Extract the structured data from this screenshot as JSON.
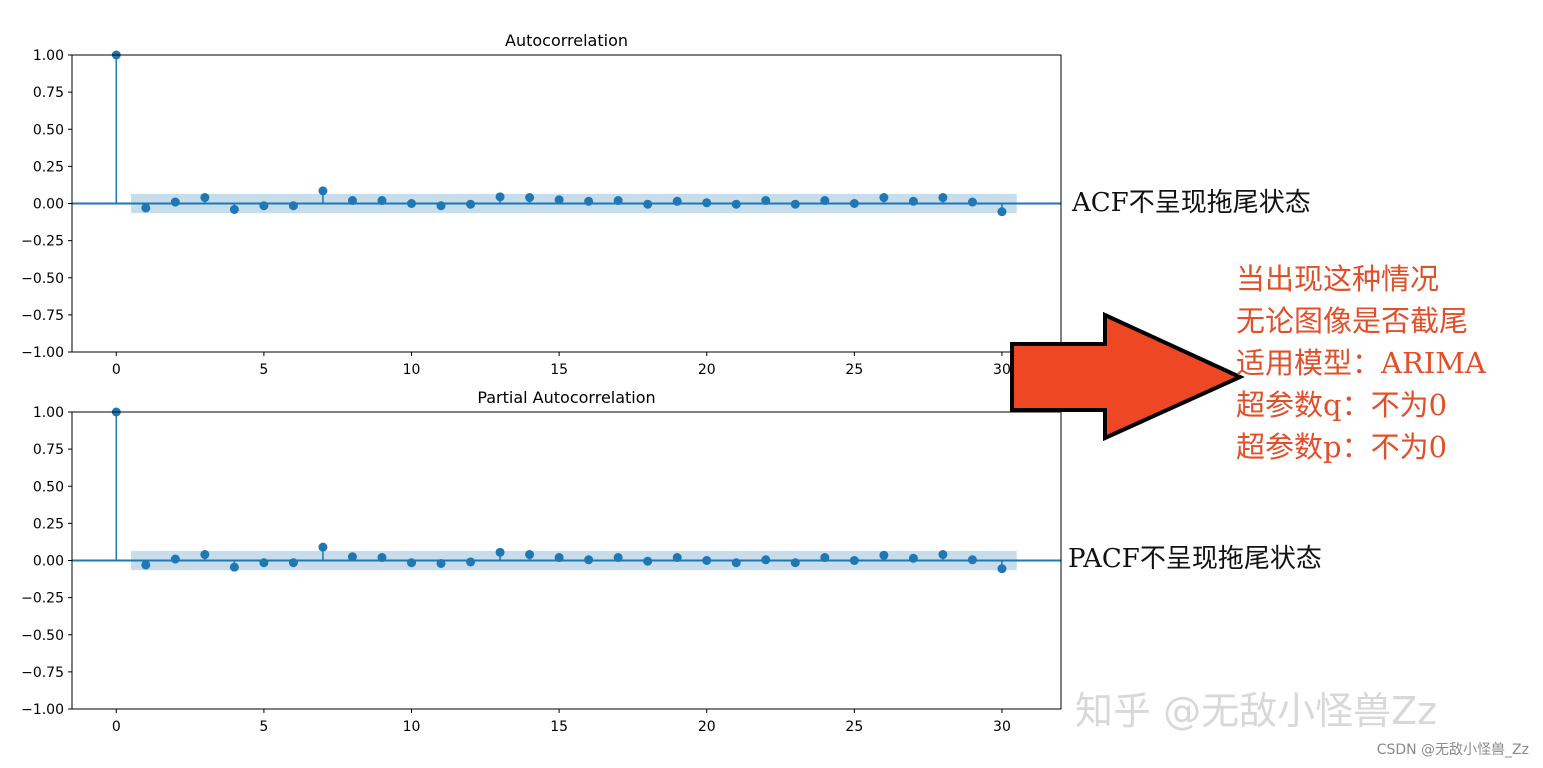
{
  "chart_data": [
    {
      "type": "stem",
      "title": "Autocorrelation",
      "xlim": [
        -1.5,
        32
      ],
      "ylim": [
        -1.0,
        1.0
      ],
      "xticks": [
        "0",
        "5",
        "10",
        "15",
        "20",
        "25",
        "30"
      ],
      "yticks": [
        "1.00",
        "0.75",
        "0.50",
        "0.25",
        "0.00",
        "−0.25",
        "−0.50",
        "−0.75",
        "−1.00"
      ],
      "confidence_band": [
        -0.065,
        0.065
      ],
      "lags": [
        0,
        1,
        2,
        3,
        4,
        5,
        6,
        7,
        8,
        9,
        10,
        11,
        12,
        13,
        14,
        15,
        16,
        17,
        18,
        19,
        20,
        21,
        22,
        23,
        24,
        25,
        26,
        27,
        28,
        29,
        30
      ],
      "values": [
        1.0,
        -0.03,
        0.01,
        0.04,
        -0.04,
        -0.015,
        -0.015,
        0.085,
        0.02,
        0.02,
        0.0,
        -0.015,
        -0.005,
        0.045,
        0.04,
        0.025,
        0.015,
        0.02,
        -0.005,
        0.015,
        0.005,
        -0.005,
        0.02,
        -0.005,
        0.02,
        0.0,
        0.04,
        0.015,
        0.04,
        0.01,
        -0.055
      ],
      "color": "#1f77b4"
    },
    {
      "type": "stem",
      "title": "Partial Autocorrelation",
      "xlim": [
        -1.5,
        32
      ],
      "ylim": [
        -1.0,
        1.0
      ],
      "xticks": [
        "0",
        "5",
        "10",
        "15",
        "20",
        "25",
        "30"
      ],
      "yticks": [
        "1.00",
        "0.75",
        "0.50",
        "0.25",
        "0.00",
        "−0.25",
        "−0.50",
        "−0.75",
        "−1.00"
      ],
      "confidence_band": [
        -0.065,
        0.065
      ],
      "lags": [
        0,
        1,
        2,
        3,
        4,
        5,
        6,
        7,
        8,
        9,
        10,
        11,
        12,
        13,
        14,
        15,
        16,
        17,
        18,
        19,
        20,
        21,
        22,
        23,
        24,
        25,
        26,
        27,
        28,
        29,
        30
      ],
      "values": [
        1.0,
        -0.03,
        0.01,
        0.04,
        -0.045,
        -0.015,
        -0.015,
        0.09,
        0.025,
        0.02,
        -0.015,
        -0.02,
        -0.01,
        0.055,
        0.04,
        0.02,
        0.005,
        0.02,
        -0.005,
        0.02,
        0.0,
        -0.015,
        0.005,
        -0.015,
        0.02,
        0.0,
        0.035,
        0.015,
        0.04,
        0.005,
        -0.055
      ],
      "color": "#1f77b4"
    }
  ],
  "annotations": {
    "acf_note": "ACF不呈现拖尾状态",
    "pacf_note": "PACF不呈现拖尾状态",
    "advice_lines": [
      "当出现这种情况",
      "无论图像是否截尾",
      "适用模型：ARIMA",
      "超参数q：不为0",
      "超参数p：不为0"
    ],
    "advice_color": "#e0502a",
    "arrow_color": "#ee4724",
    "arrow_icon": "right-arrow-icon"
  },
  "watermark": "知乎 @无敌小怪兽Zz",
  "credit": "CSDN @无敌小怪兽_Zz"
}
